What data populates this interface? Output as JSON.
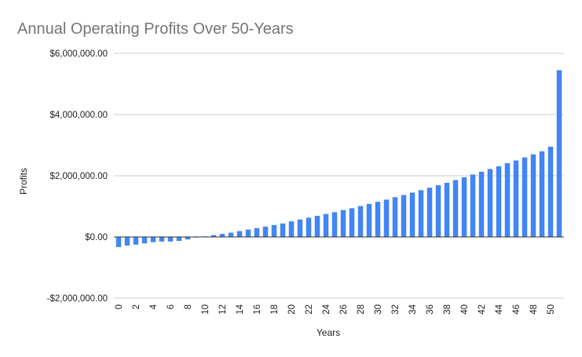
{
  "chart_data": {
    "type": "bar",
    "title": "Annual Operating Profits Over 50-Years",
    "xlabel": "Years",
    "ylabel": "Profits",
    "ylim": [
      -2000000,
      6000000
    ],
    "yticks": [
      {
        "value": 6000000,
        "label": "$6,000,000.00"
      },
      {
        "value": 4000000,
        "label": "$4,000,000.00"
      },
      {
        "value": 2000000,
        "label": "$2,000,000.00"
      },
      {
        "value": 0,
        "label": "$0.00"
      },
      {
        "value": -2000000,
        "label": "-$2,000,000.00"
      }
    ],
    "xtick_labels": [
      "0",
      "2",
      "4",
      "6",
      "8",
      "10",
      "12",
      "14",
      "16",
      "18",
      "20",
      "22",
      "24",
      "26",
      "28",
      "30",
      "32",
      "34",
      "36",
      "38",
      "40",
      "42",
      "44",
      "46",
      "48",
      "50"
    ],
    "grid": true,
    "bar_color": "#4285f4",
    "categories": [
      0,
      1,
      2,
      3,
      4,
      5,
      6,
      7,
      8,
      9,
      10,
      11,
      12,
      13,
      14,
      15,
      16,
      17,
      18,
      19,
      20,
      21,
      22,
      23,
      24,
      25,
      26,
      27,
      28,
      29,
      30,
      31,
      32,
      33,
      34,
      35,
      36,
      37,
      38,
      39,
      40,
      41,
      42,
      43,
      44,
      45,
      46,
      47,
      48,
      49,
      50,
      51
    ],
    "values": [
      -330000,
      -280000,
      -250000,
      -210000,
      -170000,
      -150000,
      -150000,
      -130000,
      -80000,
      -20000,
      20000,
      60000,
      100000,
      140000,
      190000,
      240000,
      290000,
      340000,
      390000,
      440000,
      510000,
      570000,
      630000,
      690000,
      750000,
      810000,
      880000,
      940000,
      1010000,
      1080000,
      1150000,
      1220000,
      1300000,
      1370000,
      1450000,
      1530000,
      1610000,
      1690000,
      1770000,
      1860000,
      1950000,
      2040000,
      2130000,
      2220000,
      2310000,
      2410000,
      2500000,
      2600000,
      2700000,
      2800000,
      2950000,
      5450000
    ]
  }
}
